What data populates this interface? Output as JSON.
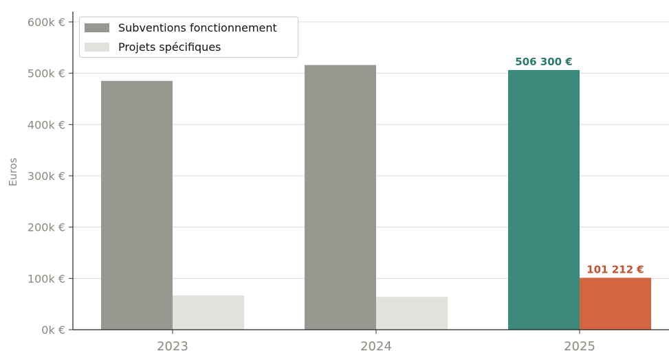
{
  "chart_data": {
    "type": "bar",
    "categories": [
      "2023",
      "2024",
      "2025"
    ],
    "series": [
      {
        "name": "Subventions fonctionnement",
        "values": [
          485000,
          516000,
          506300
        ],
        "colors": [
          "#989891",
          "#989891",
          "#3b8a7c"
        ]
      },
      {
        "name": "Projets spécifiques",
        "values": [
          67000,
          64000,
          101212
        ],
        "colors": [
          "#e3e1dc",
          "#e3e1dc",
          "#d4653f"
        ]
      }
    ],
    "legend_colors": [
      "#989891",
      "#e3e1dc"
    ],
    "data_labels": [
      {
        "series": 0,
        "category": 2,
        "text": "506 300 €",
        "color": "#2a7a6c"
      },
      {
        "series": 1,
        "category": 2,
        "text": "101 212 €",
        "color": "#c4502a"
      }
    ],
    "ylabel": "Euros",
    "yticks": [
      {
        "value": 0,
        "label": "0k €"
      },
      {
        "value": 100000,
        "label": "100k €"
      },
      {
        "value": 200000,
        "label": "200k €"
      },
      {
        "value": 300000,
        "label": "300k €"
      },
      {
        "value": 400000,
        "label": "400k €"
      },
      {
        "value": 500000,
        "label": "500k €"
      },
      {
        "value": 600000,
        "label": "600k €"
      }
    ],
    "ylim": [
      0,
      620000
    ],
    "grid": "horizontal",
    "legend_position": "top-left"
  }
}
